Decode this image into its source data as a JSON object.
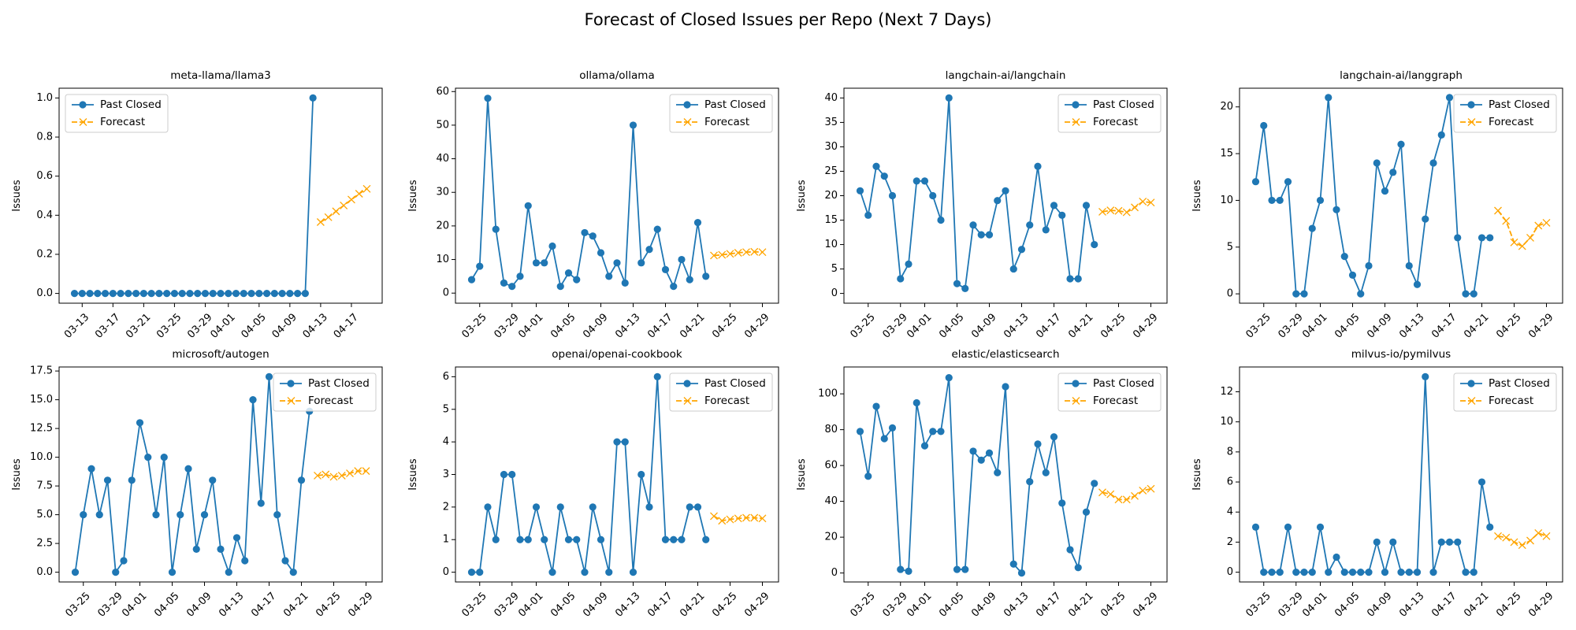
{
  "title": "Forecast of Closed Issues per Repo (Next 7 Days)",
  "chart_data": [
    {
      "type": "line",
      "title": "meta-llama/llama3",
      "y_label": "Issues",
      "legend": "upper left",
      "xlim": [
        "03-10",
        "04-21"
      ],
      "xticks": [
        "03-13",
        "03-17",
        "03-21",
        "03-25",
        "03-29",
        "04-01",
        "04-05",
        "04-09",
        "04-13",
        "04-17"
      ],
      "ylim": [
        -0.05,
        1.05
      ],
      "yticks": [
        {
          "value": 0,
          "label": "0.0"
        },
        {
          "value": 0.2,
          "label": "0.2"
        },
        {
          "value": 0.4,
          "label": "0.4"
        },
        {
          "value": 0.6,
          "label": "0.6"
        },
        {
          "value": 0.8,
          "label": "0.8"
        },
        {
          "value": 1,
          "label": "1.0"
        }
      ],
      "series": [
        {
          "name": "Past Closed",
          "color": "#1f77b4",
          "marker": "o",
          "linestyle": "solid",
          "x": [
            "03-12",
            "03-13",
            "03-14",
            "03-15",
            "03-16",
            "03-17",
            "03-18",
            "03-19",
            "03-20",
            "03-21",
            "03-22",
            "03-23",
            "03-24",
            "03-25",
            "03-26",
            "03-27",
            "03-28",
            "03-29",
            "03-30",
            "03-31",
            "04-01",
            "04-02",
            "04-03",
            "04-04",
            "04-05",
            "04-06",
            "04-07",
            "04-08",
            "04-09",
            "04-10",
            "04-11",
            "04-12"
          ],
          "values": [
            0,
            0,
            0,
            0,
            0,
            0,
            0,
            0,
            0,
            0,
            0,
            0,
            0,
            0,
            0,
            0,
            0,
            0,
            0,
            0,
            0,
            0,
            0,
            0,
            0,
            0,
            0,
            0,
            0,
            0,
            0,
            1
          ]
        },
        {
          "name": "Forecast",
          "color": "#ffa500",
          "marker": "x",
          "linestyle": "dashed",
          "x": [
            "04-13",
            "04-14",
            "04-15",
            "04-16",
            "04-17",
            "04-18",
            "04-19"
          ],
          "values": [
            0.365,
            0.39,
            0.42,
            0.45,
            0.48,
            0.51,
            0.535
          ]
        }
      ]
    },
    {
      "type": "line",
      "title": "ollama/ollama",
      "y_label": "Issues",
      "legend": "upper right",
      "xlim": [
        "03-22",
        "05-01"
      ],
      "xticks": [
        "03-25",
        "03-29",
        "04-01",
        "04-05",
        "04-09",
        "04-13",
        "04-17",
        "04-21",
        "04-25",
        "04-29"
      ],
      "ylim": [
        -3,
        61
      ],
      "yticks": [
        0,
        10,
        20,
        30,
        40,
        50,
        60
      ],
      "series": [
        {
          "name": "Past Closed",
          "color": "#1f77b4",
          "marker": "o",
          "linestyle": "solid",
          "x": [
            "03-24",
            "03-25",
            "03-26",
            "03-27",
            "03-28",
            "03-29",
            "03-30",
            "03-31",
            "04-01",
            "04-02",
            "04-03",
            "04-04",
            "04-05",
            "04-06",
            "04-07",
            "04-08",
            "04-09",
            "04-10",
            "04-11",
            "04-12",
            "04-13",
            "04-14",
            "04-15",
            "04-16",
            "04-17",
            "04-18",
            "04-19",
            "04-20",
            "04-21",
            "04-22"
          ],
          "values": [
            4,
            8,
            58,
            19,
            3,
            2,
            5,
            26,
            9,
            9,
            14,
            2,
            6,
            4,
            18,
            17,
            12,
            5,
            9,
            3,
            50,
            9,
            13,
            19,
            7,
            2,
            10,
            4,
            21,
            5
          ]
        },
        {
          "name": "Forecast",
          "color": "#ffa500",
          "marker": "x",
          "linestyle": "dashed",
          "x": [
            "04-23",
            "04-24",
            "04-25",
            "04-26",
            "04-27",
            "04-28",
            "04-29"
          ],
          "values": [
            11.2,
            11.4,
            11.7,
            12.0,
            12.2,
            12.3,
            12.2
          ]
        }
      ]
    },
    {
      "type": "line",
      "title": "langchain-ai/langchain",
      "y_label": "Issues",
      "legend": "upper right",
      "xlim": [
        "03-22",
        "05-01"
      ],
      "xticks": [
        "03-25",
        "03-29",
        "04-01",
        "04-05",
        "04-09",
        "04-13",
        "04-17",
        "04-21",
        "04-25",
        "04-29"
      ],
      "ylim": [
        -2,
        42
      ],
      "yticks": [
        0,
        5,
        10,
        15,
        20,
        25,
        30,
        35,
        40
      ],
      "series": [
        {
          "name": "Past Closed",
          "color": "#1f77b4",
          "marker": "o",
          "linestyle": "solid",
          "x": [
            "03-24",
            "03-25",
            "03-26",
            "03-27",
            "03-28",
            "03-29",
            "03-30",
            "03-31",
            "04-01",
            "04-02",
            "04-03",
            "04-04",
            "04-05",
            "04-06",
            "04-07",
            "04-08",
            "04-09",
            "04-10",
            "04-11",
            "04-12",
            "04-13",
            "04-14",
            "04-15",
            "04-16",
            "04-17",
            "04-18",
            "04-19",
            "04-20",
            "04-21",
            "04-22"
          ],
          "values": [
            21,
            16,
            26,
            24,
            20,
            3,
            6,
            23,
            23,
            20,
            15,
            40,
            2,
            1,
            14,
            12,
            12,
            19,
            21,
            5,
            9,
            14,
            26,
            13,
            18,
            16,
            3,
            3,
            18,
            10
          ]
        },
        {
          "name": "Forecast",
          "color": "#ffa500",
          "marker": "x",
          "linestyle": "dashed",
          "x": [
            "04-23",
            "04-24",
            "04-25",
            "04-26",
            "04-27",
            "04-28",
            "04-29"
          ],
          "values": [
            16.7,
            17.0,
            16.9,
            16.6,
            17.6,
            18.8,
            18.6
          ]
        }
      ]
    },
    {
      "type": "line",
      "title": "langchain-ai/langgraph",
      "y_label": "Issues",
      "legend": "upper right",
      "xlim": [
        "03-22",
        "05-01"
      ],
      "xticks": [
        "03-25",
        "03-29",
        "04-01",
        "04-05",
        "04-09",
        "04-13",
        "04-17",
        "04-21",
        "04-25",
        "04-29"
      ],
      "ylim": [
        -1,
        22
      ],
      "yticks": [
        0,
        5,
        10,
        15,
        20
      ],
      "series": [
        {
          "name": "Past Closed",
          "color": "#1f77b4",
          "marker": "o",
          "linestyle": "solid",
          "x": [
            "03-24",
            "03-25",
            "03-26",
            "03-27",
            "03-28",
            "03-29",
            "03-30",
            "03-31",
            "04-01",
            "04-02",
            "04-03",
            "04-04",
            "04-05",
            "04-06",
            "04-07",
            "04-08",
            "04-09",
            "04-10",
            "04-11",
            "04-12",
            "04-13",
            "04-14",
            "04-15",
            "04-16",
            "04-17",
            "04-18",
            "04-19",
            "04-20",
            "04-21",
            "04-22"
          ],
          "values": [
            12,
            18,
            10,
            10,
            12,
            0,
            0,
            7,
            10,
            21,
            9,
            4,
            2,
            0,
            3,
            14,
            11,
            13,
            16,
            3,
            1,
            8,
            14,
            17,
            21,
            6,
            0,
            0,
            6,
            6
          ]
        },
        {
          "name": "Forecast",
          "color": "#ffa500",
          "marker": "x",
          "linestyle": "dashed",
          "x": [
            "04-23",
            "04-24",
            "04-25",
            "04-26",
            "04-27",
            "04-28",
            "04-29"
          ],
          "values": [
            8.9,
            7.8,
            5.5,
            5.1,
            6.0,
            7.3,
            7.6
          ]
        }
      ]
    },
    {
      "type": "line",
      "title": "microsoft/autogen",
      "y_label": "Issues",
      "legend": "upper right",
      "xlim": [
        "03-22",
        "05-01"
      ],
      "xticks": [
        "03-25",
        "03-29",
        "04-01",
        "04-05",
        "04-09",
        "04-13",
        "04-17",
        "04-21",
        "04-25",
        "04-29"
      ],
      "ylim": [
        -0.85,
        17.85
      ],
      "yticks": [
        {
          "value": 0,
          "label": "0.0"
        },
        {
          "value": 2.5,
          "label": "2.5"
        },
        {
          "value": 5,
          "label": "5.0"
        },
        {
          "value": 7.5,
          "label": "7.5"
        },
        {
          "value": 10,
          "label": "10.0"
        },
        {
          "value": 12.5,
          "label": "12.5"
        },
        {
          "value": 15,
          "label": "15.0"
        },
        {
          "value": 17.5,
          "label": "17.5"
        }
      ],
      "series": [
        {
          "name": "Past Closed",
          "color": "#1f77b4",
          "marker": "o",
          "linestyle": "solid",
          "x": [
            "03-24",
            "03-25",
            "03-26",
            "03-27",
            "03-28",
            "03-29",
            "03-30",
            "03-31",
            "04-01",
            "04-02",
            "04-03",
            "04-04",
            "04-05",
            "04-06",
            "04-07",
            "04-08",
            "04-09",
            "04-10",
            "04-11",
            "04-12",
            "04-13",
            "04-14",
            "04-15",
            "04-16",
            "04-17",
            "04-18",
            "04-19",
            "04-20",
            "04-21",
            "04-22"
          ],
          "values": [
            0,
            5,
            9,
            5,
            8,
            0,
            1,
            8,
            13,
            10,
            5,
            10,
            0,
            5,
            9,
            2,
            5,
            8,
            2,
            0,
            3,
            1,
            15,
            6,
            17,
            5,
            1,
            0,
            8,
            14
          ]
        },
        {
          "name": "Forecast",
          "color": "#ffa500",
          "marker": "x",
          "linestyle": "dashed",
          "x": [
            "04-23",
            "04-24",
            "04-25",
            "04-26",
            "04-27",
            "04-28",
            "04-29"
          ],
          "values": [
            8.4,
            8.5,
            8.3,
            8.4,
            8.6,
            8.8,
            8.8
          ]
        }
      ]
    },
    {
      "type": "line",
      "title": "openai/openai-cookbook",
      "y_label": "Issues",
      "legend": "upper right",
      "xlim": [
        "03-22",
        "05-01"
      ],
      "xticks": [
        "03-25",
        "03-29",
        "04-01",
        "04-05",
        "04-09",
        "04-13",
        "04-17",
        "04-21",
        "04-25",
        "04-29"
      ],
      "ylim": [
        -0.3,
        6.3
      ],
      "yticks": [
        0,
        1,
        2,
        3,
        4,
        5,
        6
      ],
      "series": [
        {
          "name": "Past Closed",
          "color": "#1f77b4",
          "marker": "o",
          "linestyle": "solid",
          "x": [
            "03-24",
            "03-25",
            "03-26",
            "03-27",
            "03-28",
            "03-29",
            "03-30",
            "03-31",
            "04-01",
            "04-02",
            "04-03",
            "04-04",
            "04-05",
            "04-06",
            "04-07",
            "04-08",
            "04-09",
            "04-10",
            "04-11",
            "04-12",
            "04-13",
            "04-14",
            "04-15",
            "04-16",
            "04-17",
            "04-18",
            "04-19",
            "04-20",
            "04-21",
            "04-22"
          ],
          "values": [
            0,
            0,
            2,
            1,
            3,
            3,
            1,
            1,
            2,
            1,
            0,
            2,
            1,
            1,
            0,
            2,
            1,
            0,
            4,
            4,
            0,
            3,
            2,
            6,
            1,
            1,
            1,
            2,
            2,
            1
          ]
        },
        {
          "name": "Forecast",
          "color": "#ffa500",
          "marker": "x",
          "linestyle": "dashed",
          "x": [
            "04-23",
            "04-24",
            "04-25",
            "04-26",
            "04-27",
            "04-28",
            "04-29"
          ],
          "values": [
            1.72,
            1.58,
            1.62,
            1.65,
            1.67,
            1.67,
            1.65
          ]
        }
      ]
    },
    {
      "type": "line",
      "title": "elastic/elasticsearch",
      "y_label": "Issues",
      "legend": "upper right",
      "xlim": [
        "03-22",
        "05-01"
      ],
      "xticks": [
        "03-25",
        "03-29",
        "04-01",
        "04-05",
        "04-09",
        "04-13",
        "04-17",
        "04-21",
        "04-25",
        "04-29"
      ],
      "ylim": [
        -5,
        115
      ],
      "yticks": [
        0,
        20,
        40,
        60,
        80,
        100
      ],
      "series": [
        {
          "name": "Past Closed",
          "color": "#1f77b4",
          "marker": "o",
          "linestyle": "solid",
          "x": [
            "03-24",
            "03-25",
            "03-26",
            "03-27",
            "03-28",
            "03-29",
            "03-30",
            "03-31",
            "04-01",
            "04-02",
            "04-03",
            "04-04",
            "04-05",
            "04-06",
            "04-07",
            "04-08",
            "04-09",
            "04-10",
            "04-11",
            "04-12",
            "04-13",
            "04-14",
            "04-15",
            "04-16",
            "04-17",
            "04-18",
            "04-19",
            "04-20",
            "04-21",
            "04-22"
          ],
          "values": [
            79,
            54,
            93,
            75,
            81,
            2,
            1,
            95,
            71,
            79,
            79,
            109,
            2,
            2,
            68,
            63,
            67,
            56,
            104,
            5,
            0,
            51,
            72,
            56,
            76,
            39,
            13,
            3,
            34,
            50
          ]
        },
        {
          "name": "Forecast",
          "color": "#ffa500",
          "marker": "x",
          "linestyle": "dashed",
          "x": [
            "04-23",
            "04-24",
            "04-25",
            "04-26",
            "04-27",
            "04-28",
            "04-29"
          ],
          "values": [
            45,
            44,
            41,
            41,
            43,
            46,
            47
          ]
        }
      ]
    },
    {
      "type": "line",
      "title": "milvus-io/pymilvus",
      "y_label": "Issues",
      "legend": "upper right",
      "xlim": [
        "03-22",
        "05-01"
      ],
      "xticks": [
        "03-25",
        "03-29",
        "04-01",
        "04-05",
        "04-09",
        "04-13",
        "04-17",
        "04-21",
        "04-25",
        "04-29"
      ],
      "ylim": [
        -0.65,
        13.65
      ],
      "yticks": [
        0,
        2,
        4,
        6,
        8,
        10,
        12
      ],
      "series": [
        {
          "name": "Past Closed",
          "color": "#1f77b4",
          "marker": "o",
          "linestyle": "solid",
          "x": [
            "03-24",
            "03-25",
            "03-26",
            "03-27",
            "03-28",
            "03-29",
            "03-30",
            "03-31",
            "04-01",
            "04-02",
            "04-03",
            "04-04",
            "04-05",
            "04-06",
            "04-07",
            "04-08",
            "04-09",
            "04-10",
            "04-11",
            "04-12",
            "04-13",
            "04-14",
            "04-15",
            "04-16",
            "04-17",
            "04-18",
            "04-19",
            "04-20",
            "04-21",
            "04-22"
          ],
          "values": [
            3,
            0,
            0,
            0,
            3,
            0,
            0,
            0,
            3,
            0,
            1,
            0,
            0,
            0,
            0,
            2,
            0,
            2,
            0,
            0,
            0,
            13,
            0,
            2,
            2,
            2,
            0,
            0,
            6,
            3
          ]
        },
        {
          "name": "Forecast",
          "color": "#ffa500",
          "marker": "x",
          "linestyle": "dashed",
          "x": [
            "04-23",
            "04-24",
            "04-25",
            "04-26",
            "04-27",
            "04-28",
            "04-29"
          ],
          "values": [
            2.4,
            2.3,
            2.0,
            1.8,
            2.1,
            2.6,
            2.4
          ]
        }
      ]
    }
  ]
}
